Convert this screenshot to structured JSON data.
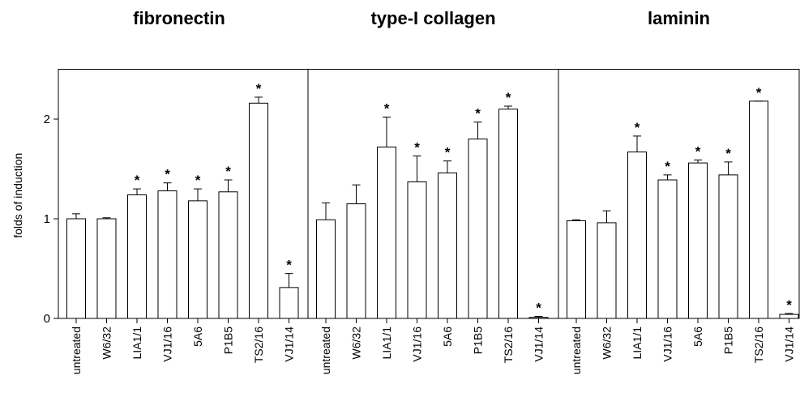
{
  "chart_data": {
    "type": "bar",
    "ylabel": "folds of induction",
    "ylim": [
      0,
      2.5
    ],
    "yticks": [
      0,
      1,
      2
    ],
    "error_bars": "one-sided (upper)",
    "significance_marker": "*",
    "grid": false,
    "categories": [
      "untreated",
      "W6/32",
      "LIA1/1",
      "VJ1/16",
      "5A6",
      "P1B5",
      "TS2/16",
      "VJ1/14"
    ],
    "panels": [
      {
        "title": "fibronectin",
        "values": [
          1.0,
          1.0,
          1.24,
          1.28,
          1.18,
          1.27,
          2.16,
          0.31
        ],
        "errors": [
          0.05,
          0.01,
          0.06,
          0.08,
          0.12,
          0.12,
          0.06,
          0.14
        ],
        "significant": [
          false,
          false,
          true,
          true,
          true,
          true,
          true,
          true
        ]
      },
      {
        "title": "type-I collagen",
        "values": [
          0.99,
          1.15,
          1.72,
          1.37,
          1.46,
          1.8,
          2.1,
          0.01
        ],
        "errors": [
          0.17,
          0.19,
          0.3,
          0.26,
          0.12,
          0.17,
          0.03,
          0.01
        ],
        "significant": [
          false,
          false,
          true,
          true,
          true,
          true,
          true,
          true
        ]
      },
      {
        "title": "laminin",
        "values": [
          0.98,
          0.96,
          1.67,
          1.39,
          1.56,
          1.44,
          2.18,
          0.04
        ],
        "errors": [
          0.01,
          0.12,
          0.16,
          0.05,
          0.03,
          0.13,
          0.0,
          0.01
        ],
        "significant": [
          false,
          false,
          true,
          true,
          true,
          true,
          true,
          true
        ]
      }
    ]
  }
}
